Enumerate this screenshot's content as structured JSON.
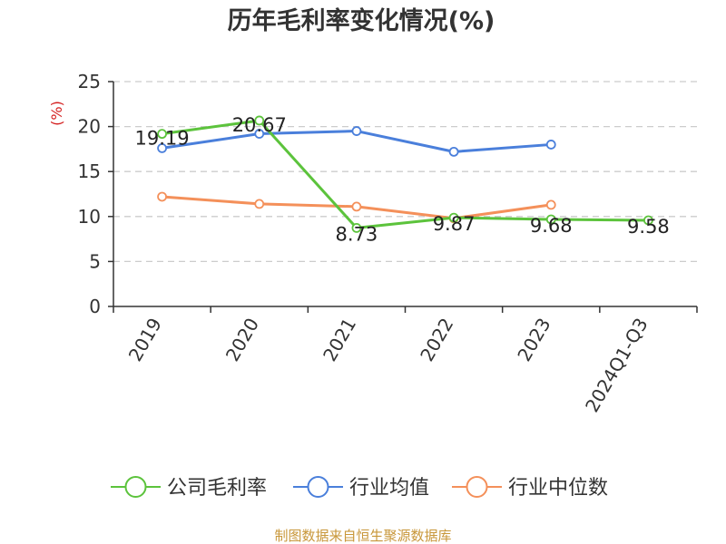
{
  "chart_data": {
    "type": "line",
    "title": "历年毛利率变化情况(%)",
    "ylabel": "(%)",
    "categories": [
      "2019",
      "2020",
      "2021",
      "2022",
      "2023",
      "2024Q1-Q3"
    ],
    "ylim": [
      0,
      25
    ],
    "yticks": [
      0,
      5,
      10,
      15,
      20,
      25
    ],
    "grid": "horizontal dashed",
    "legend_position": "bottom",
    "series": [
      {
        "name": "公司毛利率",
        "color": "#5cc33c",
        "values": [
          19.19,
          20.67,
          8.73,
          9.87,
          9.68,
          9.58
        ],
        "labels": [
          "19.19",
          "20.67",
          "8.73",
          "9.87",
          "9.68",
          "9.58"
        ]
      },
      {
        "name": "行业均值",
        "color": "#4a7fdb",
        "values": [
          17.6,
          19.2,
          19.5,
          17.2,
          18.0,
          null
        ]
      },
      {
        "name": "行业中位数",
        "color": "#f4905a",
        "values": [
          12.2,
          11.4,
          11.1,
          9.8,
          11.3,
          null
        ]
      }
    ],
    "source": "制图数据来自恒生聚源数据库",
    "colors": {
      "ylabel": "#d42020",
      "source": "#c8973a",
      "axis": "#333333",
      "grid": "#cccccc"
    }
  }
}
